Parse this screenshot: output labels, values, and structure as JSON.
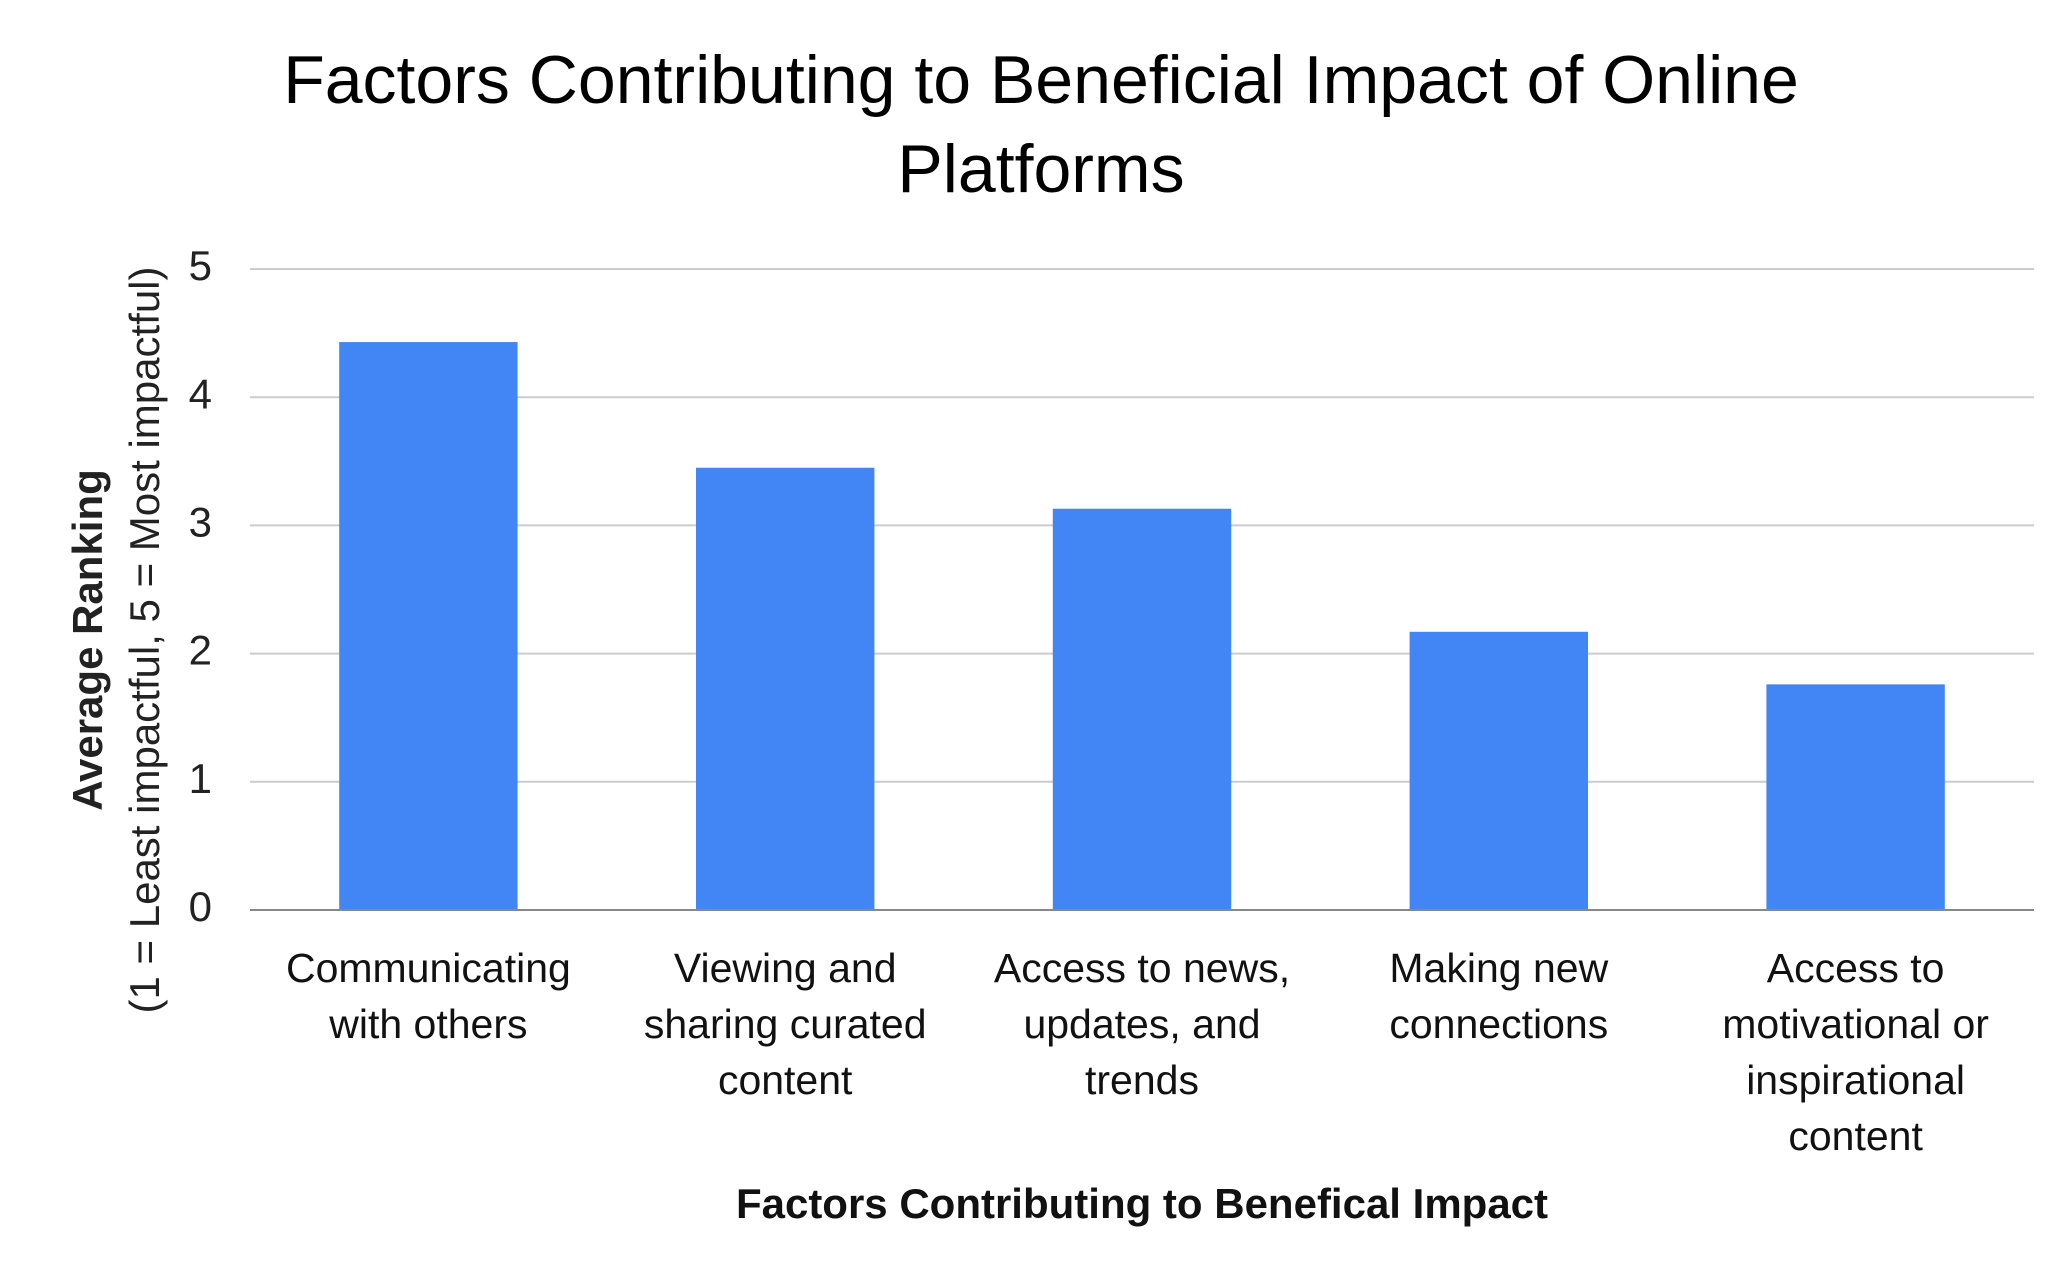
{
  "chart_data": {
    "type": "bar",
    "title": "Factors Contributing to Beneficial Impact of Online Platforms",
    "ylabel": "Average Ranking",
    "ylabel_note": "(1 = Least impactful, 5 = Most impactful)",
    "xlabel": "Factors Contributing to Benefical Impact",
    "categories": [
      "Communicating with others",
      "Viewing and sharing curated content",
      "Access to news, updates, and trends",
      "Making new connections",
      "Access to motivational or inspirational content"
    ],
    "values": [
      4.43,
      3.45,
      3.13,
      2.17,
      1.76
    ],
    "color": "#4285f4",
    "ylim": [
      0,
      5
    ],
    "yticks": [
      0,
      1,
      2,
      3,
      4,
      5
    ],
    "grid": true
  }
}
